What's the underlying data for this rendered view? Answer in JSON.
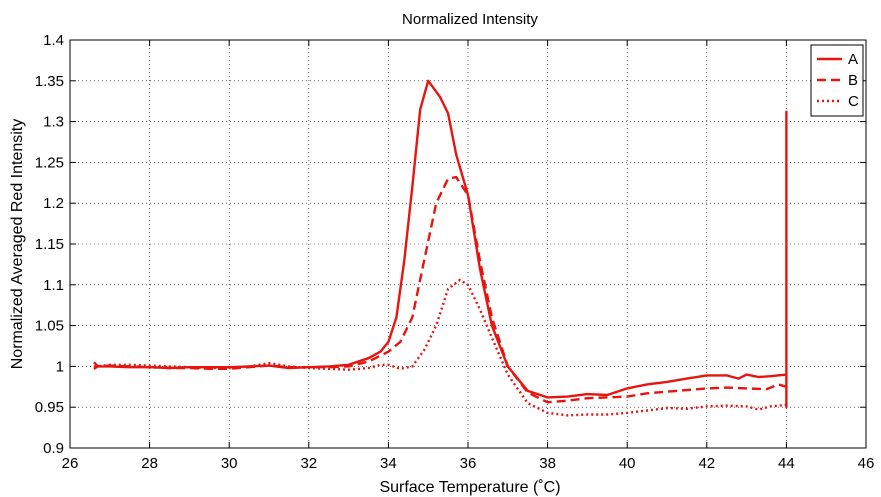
{
  "chart_data": {
    "type": "line",
    "title": "Normalized Intensity",
    "xlabel": "Surface Temperature (˚C)",
    "ylabel": "Normalized Averaged Red Intensity",
    "xlim": [
      26,
      46
    ],
    "ylim": [
      0.9,
      1.4
    ],
    "xticks": [
      26,
      28,
      30,
      32,
      34,
      36,
      38,
      40,
      42,
      44,
      46
    ],
    "xtick_labels": [
      "26",
      "28",
      "30",
      "32",
      "34",
      "36",
      "38",
      "40",
      "42",
      "44",
      "46"
    ],
    "yticks": [
      0.9,
      0.95,
      1.0,
      1.05,
      1.1,
      1.15,
      1.2,
      1.25,
      1.3,
      1.35,
      1.4
    ],
    "ytick_labels": [
      "0.9",
      "0.95",
      "1",
      "1.05",
      "1.1",
      "1.15",
      "1.2",
      "1.25",
      "1.3",
      "1.35",
      "1.4"
    ],
    "grid": true,
    "grid_style": "dotted",
    "legend_position": "top-right",
    "color": "#e8140f",
    "series": [
      {
        "name": "A",
        "line_style": "solid",
        "x": [
          26.6,
          26.7,
          27.0,
          27.5,
          28.0,
          28.5,
          29.0,
          29.5,
          30.0,
          30.5,
          31.0,
          31.5,
          32.0,
          32.5,
          33.0,
          33.5,
          33.8,
          34.0,
          34.2,
          34.4,
          34.6,
          34.8,
          35.0,
          35.3,
          35.5,
          35.7,
          36.0,
          36.3,
          36.6,
          37.0,
          37.5,
          38.0,
          38.5,
          39.0,
          39.5,
          40.0,
          40.5,
          41.0,
          41.5,
          42.0,
          42.5,
          42.8,
          43.0,
          43.3,
          43.6,
          44.0,
          44.0,
          44.0,
          44.0
        ],
        "y": [
          0.997,
          1.0,
          1.0,
          0.999,
          0.999,
          0.998,
          0.999,
          0.999,
          0.999,
          1.0,
          1.001,
          0.998,
          0.999,
          1.0,
          1.002,
          1.01,
          1.018,
          1.03,
          1.06,
          1.13,
          1.22,
          1.315,
          1.35,
          1.33,
          1.31,
          1.26,
          1.21,
          1.12,
          1.05,
          1.0,
          0.97,
          0.962,
          0.963,
          0.966,
          0.965,
          0.973,
          0.978,
          0.981,
          0.985,
          0.989,
          0.989,
          0.985,
          0.99,
          0.987,
          0.988,
          0.99,
          1.312,
          0.95,
          0.99
        ]
      },
      {
        "name": "B",
        "line_style": "dashed",
        "x": [
          26.6,
          26.7,
          27.0,
          27.5,
          28.0,
          28.5,
          29.0,
          29.5,
          30.0,
          30.5,
          31.0,
          31.5,
          32.0,
          32.5,
          33.0,
          33.5,
          34.0,
          34.3,
          34.6,
          34.9,
          35.2,
          35.5,
          35.7,
          36.0,
          36.3,
          36.6,
          37.0,
          37.5,
          38.0,
          38.5,
          39.0,
          39.5,
          40.0,
          40.5,
          41.0,
          41.5,
          42.0,
          42.5,
          43.0,
          43.5,
          43.8,
          44.0
        ],
        "y": [
          1.005,
          1.0,
          1.001,
          1.0,
          0.999,
          0.998,
          0.998,
          0.997,
          0.997,
          0.999,
          1.001,
          0.999,
          0.999,
          0.999,
          1.0,
          1.006,
          1.018,
          1.03,
          1.06,
          1.13,
          1.2,
          1.23,
          1.232,
          1.21,
          1.13,
          1.06,
          1.0,
          0.968,
          0.956,
          0.958,
          0.961,
          0.962,
          0.963,
          0.967,
          0.969,
          0.971,
          0.973,
          0.974,
          0.973,
          0.972,
          0.978,
          0.975
        ]
      },
      {
        "name": "C",
        "line_style": "dotted",
        "x": [
          26.6,
          26.7,
          27.0,
          27.5,
          28.0,
          28.5,
          29.0,
          29.5,
          30.0,
          30.5,
          31.0,
          31.5,
          32.0,
          32.5,
          33.0,
          33.5,
          33.8,
          34.0,
          34.3,
          34.6,
          34.9,
          35.2,
          35.5,
          35.8,
          36.0,
          36.3,
          36.6,
          37.0,
          37.5,
          38.0,
          38.5,
          39.0,
          39.5,
          40.0,
          40.5,
          41.0,
          41.5,
          42.0,
          42.5,
          43.0,
          43.3,
          43.6,
          44.0
        ],
        "y": [
          1.0,
          1.0,
          1.002,
          1.002,
          1.001,
          1.0,
          0.999,
          0.998,
          0.998,
          1.0,
          1.004,
          1.0,
          0.998,
          0.997,
          0.996,
          0.998,
          1.002,
          1.002,
          0.997,
          1.0,
          1.02,
          1.05,
          1.095,
          1.106,
          1.1,
          1.07,
          1.035,
          0.99,
          0.955,
          0.943,
          0.94,
          0.941,
          0.941,
          0.943,
          0.946,
          0.949,
          0.948,
          0.951,
          0.952,
          0.951,
          0.947,
          0.951,
          0.953
        ]
      }
    ]
  }
}
